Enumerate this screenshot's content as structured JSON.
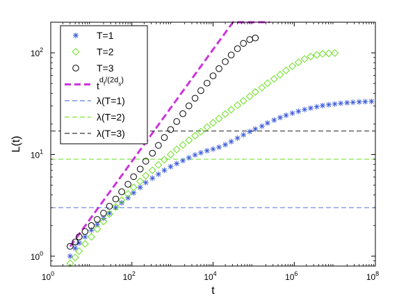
{
  "chart_data": {
    "type": "scatter",
    "xscale": "log",
    "yscale": "log",
    "xlim": [
      1,
      100000000
    ],
    "ylim": [
      0.8,
      200
    ],
    "grid": false,
    "legend_position": "top-left",
    "xlabel": "t",
    "ylabel": "L(t)",
    "x_ticks": [
      {
        "value": 1,
        "base": "10",
        "exp": "0"
      },
      {
        "value": 100,
        "base": "10",
        "exp": "2"
      },
      {
        "value": 10000,
        "base": "10",
        "exp": "4"
      },
      {
        "value": 1000000,
        "base": "10",
        "exp": "6"
      },
      {
        "value": 100000000,
        "base": "10",
        "exp": "8"
      }
    ],
    "y_ticks": [
      {
        "value": 1,
        "base": "10",
        "exp": "0"
      },
      {
        "value": 10,
        "base": "10",
        "exp": "1"
      },
      {
        "value": 100,
        "base": "10",
        "exp": "2"
      }
    ],
    "series": [
      {
        "name": "T=1",
        "marker": "asterisk",
        "color": "#3b5bd9",
        "x": [
          3,
          4,
          5,
          7,
          10,
          14,
          20,
          28,
          40,
          56,
          80,
          110,
          160,
          220,
          320,
          450,
          630,
          900,
          1270,
          1800,
          2540,
          3600,
          5000,
          7100,
          10000,
          14000,
          20000,
          28000,
          40000,
          56000,
          80000,
          110000,
          160000,
          220000,
          320000,
          450000,
          630000,
          900000,
          1270000,
          1800000,
          2540000,
          3600000,
          5000000,
          7100000,
          10000000,
          14000000,
          20000000,
          28000000,
          40000000,
          56000000,
          80000000
        ],
        "y": [
          1.0,
          1.2,
          1.35,
          1.55,
          1.8,
          2.05,
          2.35,
          2.65,
          3.0,
          3.35,
          3.75,
          4.2,
          4.75,
          5.3,
          5.85,
          6.4,
          7.0,
          7.6,
          8.15,
          8.7,
          9.3,
          9.9,
          10.4,
          10.9,
          11.3,
          11.8,
          12.5,
          13.4,
          14.5,
          15.6,
          16.8,
          17.8,
          19.0,
          20.4,
          21.8,
          23.1,
          24.3,
          25.5,
          26.6,
          27.7,
          28.6,
          29.5,
          30.3,
          30.9,
          31.4,
          31.9,
          32.3,
          32.6,
          32.9,
          33.1,
          33.3
        ]
      },
      {
        "name": "T=2",
        "marker": "diamond",
        "color": "#66e01a",
        "x": [
          3,
          4,
          5,
          7,
          10,
          14,
          20,
          28,
          40,
          56,
          80,
          110,
          160,
          220,
          320,
          450,
          630,
          900,
          1270,
          1800,
          2540,
          3600,
          5000,
          7100,
          10000,
          14000,
          20000,
          28000,
          40000,
          56000,
          80000,
          110000,
          160000,
          220000,
          320000,
          450000,
          630000,
          900000,
          1270000,
          1800000,
          2540000,
          3600000,
          5000000,
          7100000,
          10000000
        ],
        "y": [
          0.85,
          0.97,
          1.12,
          1.32,
          1.55,
          1.85,
          2.2,
          2.6,
          3.05,
          3.55,
          4.1,
          4.75,
          5.45,
          6.2,
          7.0,
          7.9,
          8.9,
          10.0,
          11.2,
          12.4,
          13.8,
          15.3,
          16.8,
          18.6,
          20.5,
          22.6,
          25.0,
          27.6,
          30.5,
          33.7,
          37.3,
          41.2,
          45.5,
          50.2,
          55.4,
          61.0,
          67.2,
          73.8,
          80.7,
          87.0,
          92.0,
          95.5,
          97.7,
          98.8,
          99.5
        ]
      },
      {
        "name": "T=3",
        "marker": "circle",
        "color": "#000000",
        "x": [
          3,
          4,
          5,
          7,
          10,
          14,
          20,
          28,
          40,
          56,
          80,
          110,
          160,
          220,
          320,
          450,
          630,
          900,
          1270,
          1800,
          2540,
          3600,
          5000,
          7100,
          10000,
          14000,
          20000,
          28000,
          40000,
          56000,
          80000,
          110000
        ],
        "y": [
          1.25,
          1.38,
          1.55,
          1.75,
          2.0,
          2.3,
          2.65,
          3.1,
          3.65,
          4.3,
          5.1,
          6.05,
          7.2,
          8.6,
          10.3,
          12.3,
          14.7,
          17.6,
          21.1,
          25.2,
          30.1,
          35.8,
          42.5,
          50.3,
          59.4,
          69.9,
          81.9,
          95.3,
          110.0,
          124.0,
          135.0,
          140.0
        ]
      }
    ],
    "reference_lines": [
      {
        "name": "t^{d_f/(2d_s)}",
        "kind": "power_law",
        "color": "#cc33dd",
        "exponent": 0.55,
        "coef": 0.68,
        "x_range": [
          3,
          250000
        ]
      },
      {
        "name": "λ(T=1)",
        "kind": "horizontal",
        "y": 3.0,
        "color": "#3b5bd9"
      },
      {
        "name": "λ(T=2)",
        "kind": "horizontal",
        "y": 9.0,
        "color": "#66e01a"
      },
      {
        "name": "λ(T=3)",
        "kind": "horizontal",
        "y": 17.0,
        "color": "#000000"
      }
    ],
    "legend": [
      {
        "label": "T=1",
        "style": "asterisk",
        "color": "#3b5bd9"
      },
      {
        "label": "T=2",
        "style": "diamond",
        "color": "#66e01a"
      },
      {
        "label": "T=3",
        "style": "circle",
        "color": "#000000"
      },
      {
        "label_main": "t",
        "label_sup_a": "d",
        "label_sub_a": "f",
        "label_sup_b": "/(2d",
        "label_sub_b": "s",
        "label_sup_c": ")",
        "style": "thick-dashed",
        "color": "#cc33dd"
      },
      {
        "label": "λ(T=1)",
        "style": "dashed",
        "color": "#3b5bd9"
      },
      {
        "label": "λ(T=2)",
        "style": "dashed",
        "color": "#66e01a"
      },
      {
        "label": "λ(T=3)",
        "style": "dashed",
        "color": "#000000"
      }
    ]
  }
}
